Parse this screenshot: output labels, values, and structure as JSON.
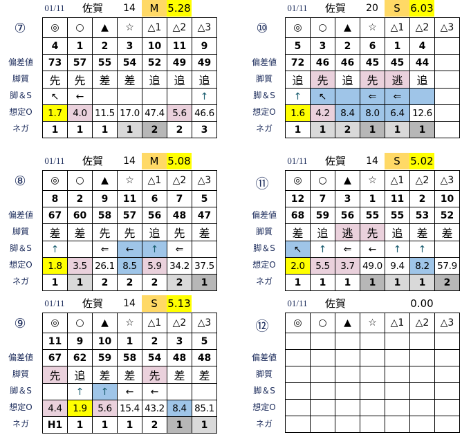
{
  "colors": {
    "y": "#FFFF00",
    "p": "#EAD1DC",
    "b": "#9FC5E8",
    "g": "#D9D9D9",
    "d": "#B7B7B7",
    "orange": "#FFD966",
    "label": "#1a2a5a",
    "up_arrow": "#1b5e70"
  },
  "row_labels": [
    "",
    "",
    "偏差値",
    "脚質",
    "脚＆S",
    "想定O",
    "ネガ"
  ],
  "marks": [
    "◎",
    "○",
    "▲",
    "☆",
    "△1",
    "△2",
    "△3"
  ],
  "blocks": [
    {
      "race": "⑦",
      "date": "01/11",
      "venue": "佐賀",
      "count": "14",
      "type": "M",
      "value": "5.28",
      "num": [
        [
          "4"
        ],
        [
          "1"
        ],
        [
          "2"
        ],
        [
          "3"
        ],
        [
          "10"
        ],
        [
          "11"
        ],
        [
          "9"
        ]
      ],
      "dev": [
        [
          "73"
        ],
        [
          "57"
        ],
        [
          "55"
        ],
        [
          "54"
        ],
        [
          "52"
        ],
        [
          "49"
        ],
        [
          "49"
        ]
      ],
      "style": [
        [
          "先"
        ],
        [
          "先"
        ],
        [
          "差"
        ],
        [
          "差"
        ],
        [
          "追"
        ],
        [
          "追"
        ],
        [
          "追"
        ]
      ],
      "ls": [
        [
          "↖"
        ],
        [
          "←"
        ],
        [
          ""
        ],
        [
          ""
        ],
        [
          ""
        ],
        [
          ""
        ],
        [
          "↑"
        ]
      ],
      "odds": [
        [
          "1.7",
          "y"
        ],
        [
          "4.0",
          "p"
        ],
        [
          "11.5"
        ],
        [
          "17.0"
        ],
        [
          "47.4"
        ],
        [
          "5.6",
          "p"
        ],
        [
          "46.6"
        ]
      ],
      "neg": [
        [
          "1"
        ],
        [
          "1"
        ],
        [
          "1"
        ],
        [
          "1",
          "g"
        ],
        [
          "2",
          "d"
        ],
        [
          "2"
        ],
        [
          "3"
        ]
      ]
    },
    {
      "race": "⑩",
      "date": "01/11",
      "venue": "佐賀",
      "count": "20",
      "type": "S",
      "value": "6.03",
      "num": [
        [
          "5"
        ],
        [
          "3"
        ],
        [
          "2"
        ],
        [
          "6"
        ],
        [
          "1"
        ],
        [
          "4"
        ],
        [
          ""
        ]
      ],
      "dev": [
        [
          "72"
        ],
        [
          "46"
        ],
        [
          "46"
        ],
        [
          "45"
        ],
        [
          "45"
        ],
        [
          "44"
        ],
        [
          ""
        ]
      ],
      "style": [
        [
          "追"
        ],
        [
          "先",
          "p"
        ],
        [
          "追"
        ],
        [
          "先",
          "p"
        ],
        [
          "逃",
          "p"
        ],
        [
          "追"
        ],
        [
          ""
        ]
      ],
      "ls": [
        [
          "↑"
        ],
        [
          "↖",
          "b"
        ],
        [
          "",
          "b"
        ],
        [
          "⇐",
          "b"
        ],
        [
          "⇐",
          "b"
        ],
        [
          "",
          "b"
        ],
        [
          ""
        ]
      ],
      "odds": [
        [
          "1.6",
          "y"
        ],
        [
          "4.2",
          "p"
        ],
        [
          "8.4",
          "b"
        ],
        [
          "8.0",
          "b"
        ],
        [
          "6.4",
          "b"
        ],
        [
          "12.6"
        ],
        [
          ""
        ]
      ],
      "neg": [
        [
          "1"
        ],
        [
          "1",
          "g"
        ],
        [
          "2",
          "g"
        ],
        [
          "1",
          "d"
        ],
        [
          "1",
          "g"
        ],
        [
          "1",
          "d"
        ],
        [
          ""
        ]
      ]
    },
    {
      "race": "⑧",
      "date": "01/11",
      "venue": "佐賀",
      "count": "14",
      "type": "M",
      "value": "5.08",
      "num": [
        [
          "8"
        ],
        [
          "2"
        ],
        [
          "9"
        ],
        [
          "11"
        ],
        [
          "6"
        ],
        [
          "7"
        ],
        [
          "5"
        ]
      ],
      "dev": [
        [
          "67"
        ],
        [
          "60"
        ],
        [
          "58"
        ],
        [
          "57"
        ],
        [
          "56"
        ],
        [
          "48"
        ],
        [
          "47"
        ]
      ],
      "style": [
        [
          "差"
        ],
        [
          "差"
        ],
        [
          "先"
        ],
        [
          "先"
        ],
        [
          "追"
        ],
        [
          "先"
        ],
        [
          "差"
        ]
      ],
      "ls": [
        [
          "↑"
        ],
        [
          ""
        ],
        [
          "⇐"
        ],
        [
          "←",
          "b"
        ],
        [
          "↑",
          "b"
        ],
        [
          "⇐"
        ],
        [
          ""
        ]
      ],
      "odds": [
        [
          "1.8",
          "y"
        ],
        [
          "3.5",
          "p"
        ],
        [
          "26.1"
        ],
        [
          "8.5",
          "b"
        ],
        [
          "5.9",
          "p"
        ],
        [
          "34.2"
        ],
        [
          "37.5"
        ]
      ],
      "neg": [
        [
          "1"
        ],
        [
          "1",
          "g"
        ],
        [
          "2"
        ],
        [
          "2"
        ],
        [
          "2"
        ],
        [
          "2",
          "g"
        ],
        [
          "1",
          "d"
        ]
      ]
    },
    {
      "race": "⑪",
      "date": "01/11",
      "venue": "佐賀",
      "count": "14",
      "type": "S",
      "value": "5.02",
      "num": [
        [
          "12"
        ],
        [
          "7"
        ],
        [
          "3"
        ],
        [
          "1"
        ],
        [
          "11"
        ],
        [
          "2"
        ],
        [
          "10"
        ]
      ],
      "dev": [
        [
          "68"
        ],
        [
          "59"
        ],
        [
          "56"
        ],
        [
          "55"
        ],
        [
          "55"
        ],
        [
          "53"
        ],
        [
          "52"
        ]
      ],
      "style": [
        [
          "差"
        ],
        [
          "追"
        ],
        [
          "逃",
          "p"
        ],
        [
          "先",
          "p"
        ],
        [
          "追"
        ],
        [
          "差"
        ],
        [
          "差"
        ]
      ],
      "ls": [
        [
          "↖",
          "b"
        ],
        [
          "↑"
        ],
        [
          "⇐"
        ],
        [
          "←"
        ],
        [
          "↑"
        ],
        [
          "↑"
        ],
        [
          ""
        ]
      ],
      "odds": [
        [
          "2.0",
          "y"
        ],
        [
          "5.5",
          "p"
        ],
        [
          "3.7",
          "p"
        ],
        [
          "49.0"
        ],
        [
          "9.4"
        ],
        [
          "8.2",
          "b"
        ],
        [
          "57.9"
        ]
      ],
      "neg": [
        [
          "1"
        ],
        [
          "1"
        ],
        [
          "1"
        ],
        [
          "1",
          "d"
        ],
        [
          "1",
          "g"
        ],
        [
          "1",
          "g"
        ],
        [
          "2",
          "d"
        ]
      ]
    },
    {
      "race": "⑨",
      "date": "01/11",
      "venue": "佐賀",
      "count": "14",
      "type": "S",
      "value": "5.13",
      "num": [
        [
          "11"
        ],
        [
          "9"
        ],
        [
          "10"
        ],
        [
          "1"
        ],
        [
          "2"
        ],
        [
          "3"
        ],
        [
          "5"
        ]
      ],
      "dev": [
        [
          "67"
        ],
        [
          "62"
        ],
        [
          "59"
        ],
        [
          "58"
        ],
        [
          "54"
        ],
        [
          "48"
        ],
        [
          "48"
        ]
      ],
      "style": [
        [
          "先",
          "p"
        ],
        [
          "追"
        ],
        [
          "差"
        ],
        [
          "差"
        ],
        [
          "先",
          "p"
        ],
        [
          "差"
        ],
        [
          "差"
        ]
      ],
      "ls": [
        [
          ""
        ],
        [
          "↑"
        ],
        [
          "↑",
          "b"
        ],
        [
          "←"
        ],
        [
          "←"
        ],
        [
          ""
        ],
        [
          ""
        ]
      ],
      "odds": [
        [
          "4.4",
          "p"
        ],
        [
          "1.9",
          "y"
        ],
        [
          "5.6",
          "p"
        ],
        [
          "15.4"
        ],
        [
          "43.2"
        ],
        [
          "8.4",
          "b"
        ],
        [
          "85.1"
        ]
      ],
      "neg": [
        [
          "H1"
        ],
        [
          "1"
        ],
        [
          "1"
        ],
        [
          "1"
        ],
        [
          "2"
        ],
        [
          "1",
          "d"
        ],
        [
          "1",
          "g"
        ]
      ]
    },
    {
      "race": "⑫",
      "date": "01/11",
      "venue": "佐賀",
      "count": "",
      "type": "",
      "value": "0.00",
      "num": [
        [
          ""
        ],
        [
          ""
        ],
        [
          ""
        ],
        [
          ""
        ],
        [
          ""
        ],
        [
          ""
        ],
        [
          ""
        ]
      ],
      "dev": [
        [
          ""
        ],
        [
          ""
        ],
        [
          ""
        ],
        [
          ""
        ],
        [
          ""
        ],
        [
          ""
        ],
        [
          ""
        ]
      ],
      "style": [
        [
          ""
        ],
        [
          ""
        ],
        [
          ""
        ],
        [
          ""
        ],
        [
          ""
        ],
        [
          ""
        ],
        [
          ""
        ]
      ],
      "ls": [
        [
          ""
        ],
        [
          ""
        ],
        [
          ""
        ],
        [
          ""
        ],
        [
          ""
        ],
        [
          ""
        ],
        [
          ""
        ]
      ],
      "odds": [
        [
          ""
        ],
        [
          ""
        ],
        [
          ""
        ],
        [
          ""
        ],
        [
          ""
        ],
        [
          ""
        ],
        [
          ""
        ]
      ],
      "neg": [
        [
          ""
        ],
        [
          ""
        ],
        [
          ""
        ],
        [
          ""
        ],
        [
          ""
        ],
        [
          ""
        ],
        [
          ""
        ]
      ]
    }
  ]
}
